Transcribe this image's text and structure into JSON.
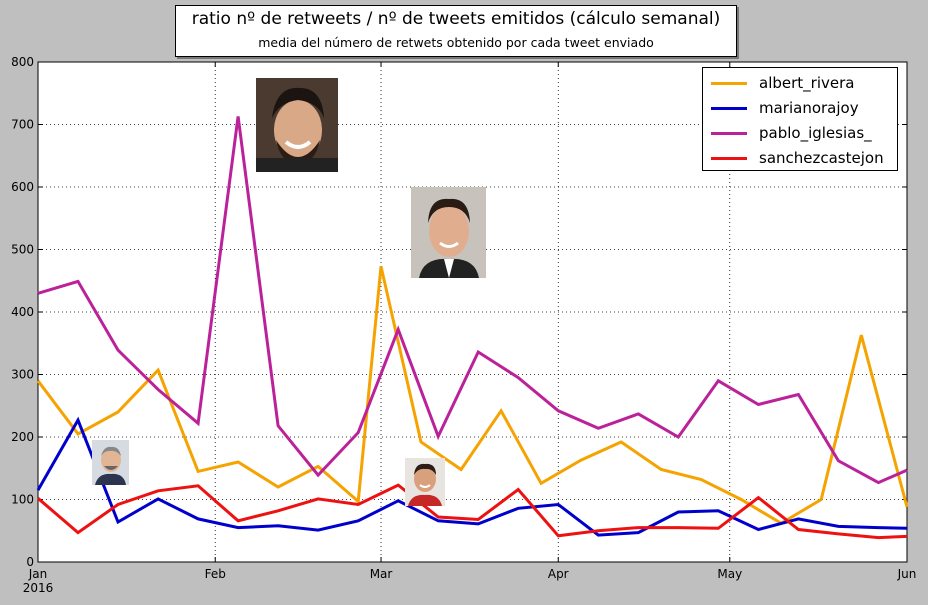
{
  "title": {
    "main": "ratio nº de retweets / nº de tweets emitidos (cálculo semanal)",
    "sub": "media del número de retwets obtenido por cada tweet enviado"
  },
  "colors": {
    "background": "#bfbfbf",
    "plot": "#ffffff"
  },
  "chart_data": {
    "type": "line",
    "x": [
      "2016-01-01",
      "2016-01-08",
      "2016-01-15",
      "2016-01-22",
      "2016-01-29",
      "2016-02-05",
      "2016-02-12",
      "2016-02-19",
      "2016-02-26",
      "2016-03-04",
      "2016-03-11",
      "2016-03-18",
      "2016-03-25",
      "2016-04-01",
      "2016-04-08",
      "2016-04-15",
      "2016-04-22",
      "2016-04-29",
      "2016-05-06",
      "2016-05-13",
      "2016-05-20",
      "2016-05-27",
      "2016-06-01"
    ],
    "x_tick_labels": [
      "Jan\n2016",
      "Feb",
      "Mar",
      "Apr",
      "May",
      "Jun"
    ],
    "x_tick_dates": [
      "2016-01-01",
      "2016-02-01",
      "2016-03-01",
      "2016-04-01",
      "2016-05-01",
      "2016-06-01"
    ],
    "ylim": [
      0,
      800
    ],
    "y_ticks": [
      0,
      100,
      200,
      300,
      400,
      500,
      600,
      700,
      800
    ],
    "grid": true,
    "legend_position": "top-right",
    "series": [
      {
        "name": "albert_rivera",
        "color": "#f5a300",
        "points": [
          [
            "2016-01-01",
            290
          ],
          [
            "2016-01-08",
            205
          ],
          [
            "2016-01-15",
            240
          ],
          [
            "2016-01-22",
            307
          ],
          [
            "2016-01-29",
            145
          ],
          [
            "2016-02-05",
            160
          ],
          [
            "2016-02-12",
            120
          ],
          [
            "2016-02-19",
            153
          ],
          [
            "2016-02-26",
            97
          ],
          [
            "2016-03-01",
            473
          ],
          [
            "2016-03-08",
            192
          ],
          [
            "2016-03-15",
            148
          ],
          [
            "2016-03-22",
            242
          ],
          [
            "2016-03-29",
            126
          ],
          [
            "2016-04-05",
            163
          ],
          [
            "2016-04-12",
            192
          ],
          [
            "2016-04-19",
            148
          ],
          [
            "2016-04-26",
            132
          ],
          [
            "2016-05-03",
            100
          ],
          [
            "2016-05-10",
            62
          ],
          [
            "2016-05-17",
            100
          ],
          [
            "2016-05-24",
            363
          ],
          [
            "2016-06-01",
            88
          ]
        ]
      },
      {
        "name": "marianorajoy",
        "color": "#0000cc",
        "points": [
          [
            "2016-01-01",
            115
          ],
          [
            "2016-01-08",
            227
          ],
          [
            "2016-01-15",
            64
          ],
          [
            "2016-01-22",
            101
          ],
          [
            "2016-01-29",
            69
          ],
          [
            "2016-02-05",
            55
          ],
          [
            "2016-02-12",
            58
          ],
          [
            "2016-02-19",
            51
          ],
          [
            "2016-02-26",
            66
          ],
          [
            "2016-03-04",
            98
          ],
          [
            "2016-03-11",
            66
          ],
          [
            "2016-03-18",
            61
          ],
          [
            "2016-03-25",
            86
          ],
          [
            "2016-04-01",
            92
          ],
          [
            "2016-04-08",
            43
          ],
          [
            "2016-04-15",
            47
          ],
          [
            "2016-04-22",
            80
          ],
          [
            "2016-04-29",
            82
          ],
          [
            "2016-05-06",
            52
          ],
          [
            "2016-05-13",
            69
          ],
          [
            "2016-05-20",
            57
          ],
          [
            "2016-05-27",
            55
          ],
          [
            "2016-06-01",
            54
          ]
        ]
      },
      {
        "name": "pablo_iglesias_",
        "color": "#bb2299",
        "points": [
          [
            "2016-01-01",
            430
          ],
          [
            "2016-01-08",
            449
          ],
          [
            "2016-01-15",
            339
          ],
          [
            "2016-01-22",
            276
          ],
          [
            "2016-01-29",
            222
          ],
          [
            "2016-02-05",
            713
          ],
          [
            "2016-02-12",
            218
          ],
          [
            "2016-02-19",
            139
          ],
          [
            "2016-02-26",
            207
          ],
          [
            "2016-03-04",
            372
          ],
          [
            "2016-03-11",
            201
          ],
          [
            "2016-03-18",
            336
          ],
          [
            "2016-03-25",
            295
          ],
          [
            "2016-04-01",
            242
          ],
          [
            "2016-04-08",
            214
          ],
          [
            "2016-04-15",
            237
          ],
          [
            "2016-04-22",
            200
          ],
          [
            "2016-04-29",
            290
          ],
          [
            "2016-05-06",
            252
          ],
          [
            "2016-05-13",
            268
          ],
          [
            "2016-05-20",
            162
          ],
          [
            "2016-05-27",
            127
          ],
          [
            "2016-06-01",
            147
          ]
        ]
      },
      {
        "name": "sanchezcastejon",
        "color": "#ee1111",
        "points": [
          [
            "2016-01-01",
            102
          ],
          [
            "2016-01-08",
            47
          ],
          [
            "2016-01-15",
            92
          ],
          [
            "2016-01-22",
            114
          ],
          [
            "2016-01-29",
            122
          ],
          [
            "2016-02-05",
            66
          ],
          [
            "2016-02-12",
            82
          ],
          [
            "2016-02-19",
            101
          ],
          [
            "2016-02-26",
            92
          ],
          [
            "2016-03-04",
            123
          ],
          [
            "2016-03-11",
            72
          ],
          [
            "2016-03-18",
            68
          ],
          [
            "2016-03-25",
            116
          ],
          [
            "2016-04-01",
            42
          ],
          [
            "2016-04-08",
            50
          ],
          [
            "2016-04-15",
            55
          ],
          [
            "2016-04-22",
            55
          ],
          [
            "2016-04-29",
            54
          ],
          [
            "2016-05-06",
            103
          ],
          [
            "2016-05-13",
            52
          ],
          [
            "2016-05-20",
            45
          ],
          [
            "2016-05-27",
            39
          ],
          [
            "2016-06-01",
            41
          ]
        ]
      }
    ]
  },
  "photos": [
    {
      "name": "pablo-iglesias-photo",
      "at": [
        "2016-02-09",
        760
      ]
    },
    {
      "name": "albert-rivera-photo",
      "at": [
        "2016-03-09",
        600
      ]
    },
    {
      "name": "mariano-rajoy-photo",
      "at": [
        "2016-01-11",
        195
      ]
    },
    {
      "name": "pedro-sanchez-photo",
      "at": [
        "2016-03-06",
        165
      ]
    }
  ]
}
